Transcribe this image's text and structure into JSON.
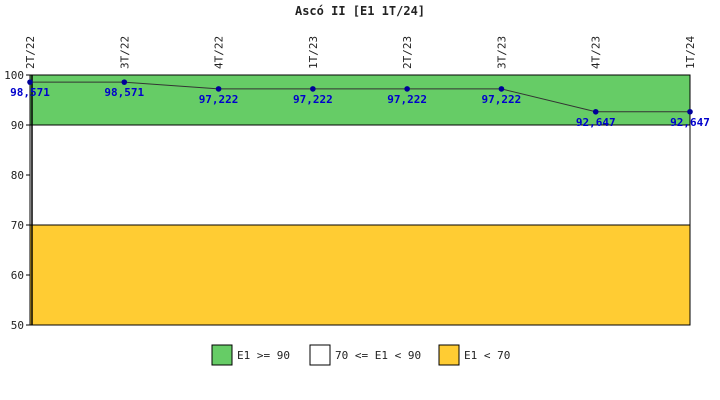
{
  "chart_data": {
    "type": "line",
    "title": "Ascó II [E1 1T/24]",
    "categories": [
      "2T/22",
      "3T/22",
      "4T/22",
      "1T/23",
      "2T/23",
      "3T/23",
      "4T/23",
      "1T/24"
    ],
    "values": [
      98.571,
      98.571,
      97.222,
      97.222,
      97.222,
      97.222,
      92.647,
      92.647
    ],
    "value_labels": [
      "98,571",
      "98,571",
      "97,222",
      "97,222",
      "97,222",
      "97,222",
      "92,647",
      "92,647"
    ],
    "ylim": [
      50,
      100
    ],
    "y_ticks": [
      "50",
      "60",
      "70",
      "80",
      "90",
      "100"
    ],
    "bands": [
      {
        "from": 90,
        "to": 100,
        "color": "#66cc66",
        "legend": "E1 >= 90"
      },
      {
        "from": 70,
        "to": 90,
        "color": "#ffffff",
        "legend": "70 <= E1 < 90"
      },
      {
        "from": 50,
        "to": 70,
        "color": "#ffcc33",
        "legend": "E1 < 70"
      }
    ],
    "line_color": "#333333",
    "point_color": "#000099",
    "label_color": "#0000cc",
    "grid": false,
    "legend_position": "bottom"
  }
}
